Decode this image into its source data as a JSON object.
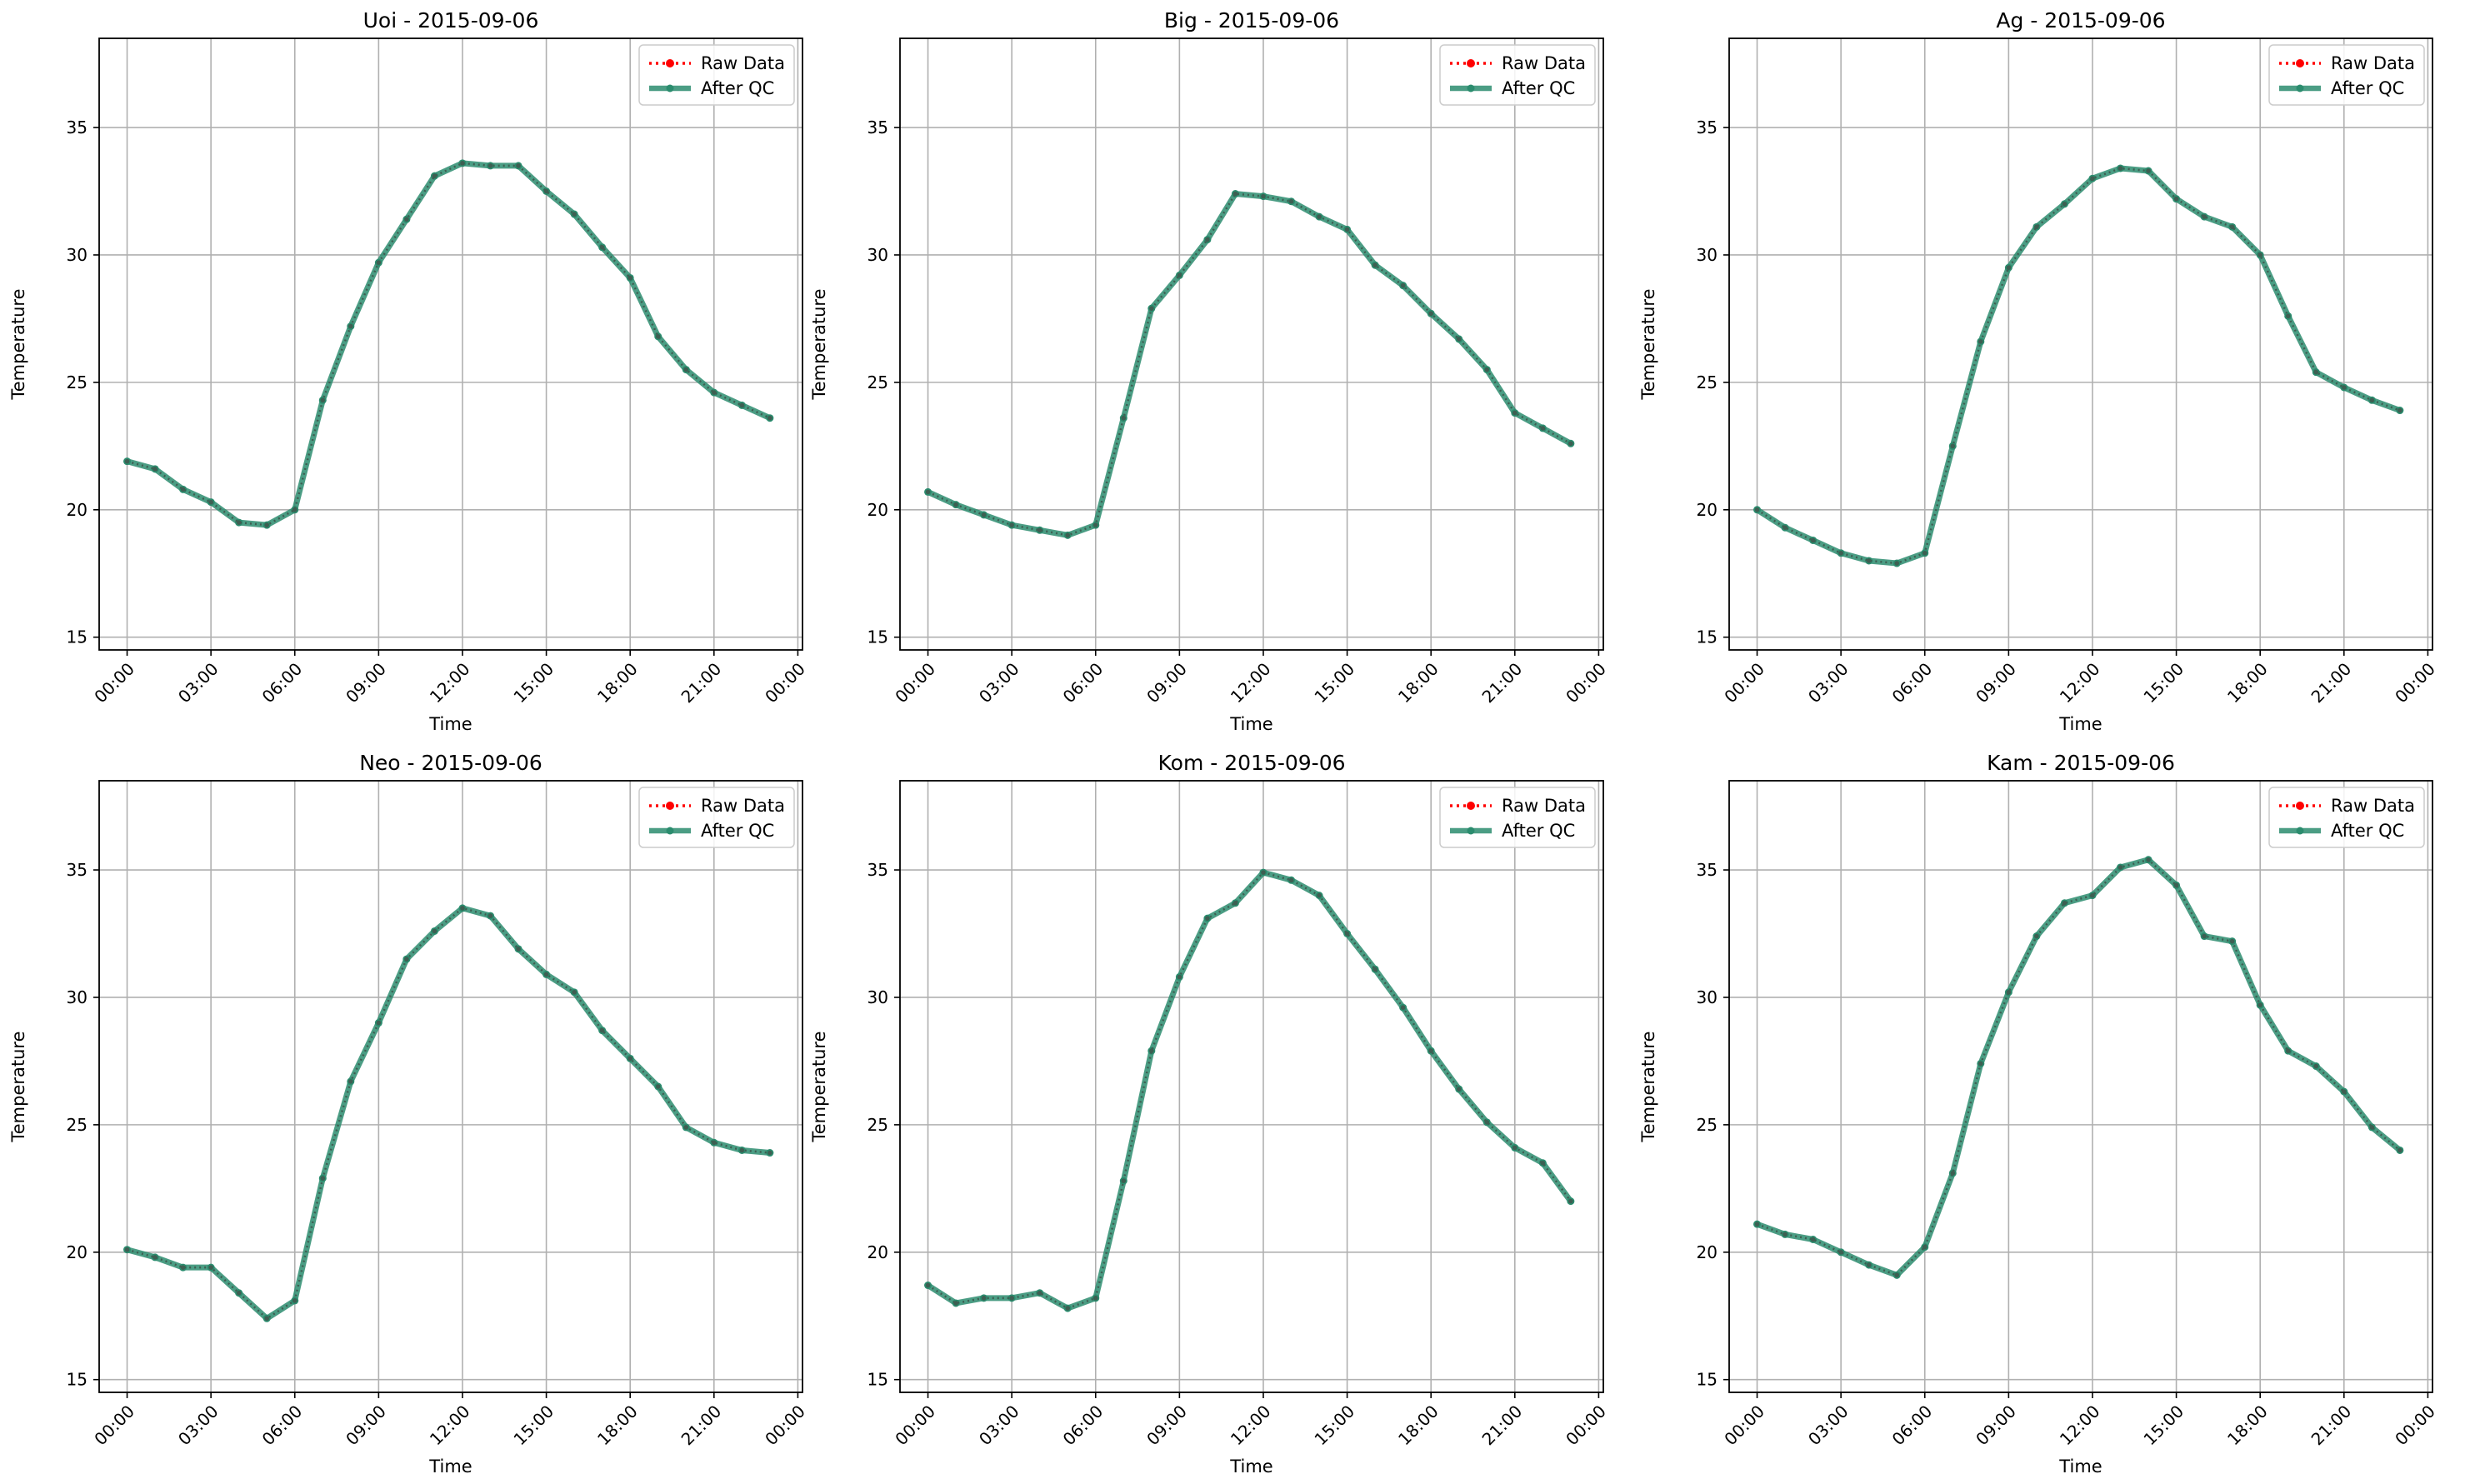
{
  "chart_data": [
    {
      "type": "line",
      "title": "Uoi - 2015-09-06",
      "xlabel": "Time",
      "ylabel": "Temperature",
      "x_tick_labels": [
        "00:00",
        "03:00",
        "06:00",
        "09:00",
        "12:00",
        "15:00",
        "18:00",
        "21:00",
        "00:00"
      ],
      "y_ticks": [
        15,
        20,
        25,
        30,
        35
      ],
      "xlim": [
        "2015-09-05 23:00",
        "2015-09-07 00:10"
      ],
      "ylim": [
        14.5,
        38.5
      ],
      "grid": true,
      "legend_position": "top-right",
      "x": [
        "00:00",
        "01:00",
        "02:00",
        "03:00",
        "04:00",
        "05:00",
        "06:00",
        "07:00",
        "08:00",
        "09:00",
        "10:00",
        "11:00",
        "12:00",
        "13:00",
        "14:00",
        "15:00",
        "16:00",
        "17:00",
        "18:00",
        "19:00",
        "20:00",
        "21:00",
        "22:00",
        "23:00"
      ],
      "series": [
        {
          "name": "Raw Data",
          "color": "#ff0000",
          "style": "dotted-markers",
          "values": [
            21.9,
            21.6,
            20.8,
            20.3,
            19.5,
            19.4,
            20.0,
            24.3,
            27.2,
            29.7,
            31.4,
            33.1,
            33.6,
            33.5,
            33.5,
            32.5,
            31.6,
            30.3,
            29.1,
            26.8,
            25.5,
            24.6,
            24.1,
            23.6
          ]
        },
        {
          "name": "After QC",
          "color": "#2b8c6e",
          "style": "solid-markers",
          "values": [
            21.9,
            21.6,
            20.8,
            20.3,
            19.5,
            19.4,
            20.0,
            24.3,
            27.2,
            29.7,
            31.4,
            33.1,
            33.6,
            33.5,
            33.5,
            32.5,
            31.6,
            30.3,
            29.1,
            26.8,
            25.5,
            24.6,
            24.1,
            23.6
          ]
        }
      ]
    },
    {
      "type": "line",
      "title": "Big - 2015-09-06",
      "xlabel": "Time",
      "ylabel": "Temperature",
      "x_tick_labels": [
        "00:00",
        "03:00",
        "06:00",
        "09:00",
        "12:00",
        "15:00",
        "18:00",
        "21:00",
        "00:00"
      ],
      "y_ticks": [
        15,
        20,
        25,
        30,
        35
      ],
      "xlim": [
        "2015-09-05 23:00",
        "2015-09-07 00:10"
      ],
      "ylim": [
        14.5,
        38.5
      ],
      "grid": true,
      "legend_position": "top-right",
      "x": [
        "00:00",
        "01:00",
        "02:00",
        "03:00",
        "04:00",
        "05:00",
        "06:00",
        "07:00",
        "08:00",
        "09:00",
        "10:00",
        "11:00",
        "12:00",
        "13:00",
        "14:00",
        "15:00",
        "16:00",
        "17:00",
        "18:00",
        "19:00",
        "20:00",
        "21:00",
        "22:00",
        "23:00"
      ],
      "series": [
        {
          "name": "Raw Data",
          "color": "#ff0000",
          "style": "dotted-markers",
          "values": [
            20.7,
            20.2,
            19.8,
            19.4,
            19.2,
            19.0,
            19.4,
            23.6,
            27.9,
            29.2,
            30.6,
            32.4,
            32.3,
            32.1,
            31.5,
            31.0,
            29.6,
            28.8,
            27.7,
            26.7,
            25.5,
            23.8,
            23.2,
            22.6
          ]
        },
        {
          "name": "After QC",
          "color": "#2b8c6e",
          "style": "solid-markers",
          "values": [
            20.7,
            20.2,
            19.8,
            19.4,
            19.2,
            19.0,
            19.4,
            23.6,
            27.9,
            29.2,
            30.6,
            32.4,
            32.3,
            32.1,
            31.5,
            31.0,
            29.6,
            28.8,
            27.7,
            26.7,
            25.5,
            23.8,
            23.2,
            22.6
          ]
        }
      ]
    },
    {
      "type": "line",
      "title": "Ag - 2015-09-06",
      "xlabel": "Time",
      "ylabel": "Temperature",
      "x_tick_labels": [
        "00:00",
        "03:00",
        "06:00",
        "09:00",
        "12:00",
        "15:00",
        "18:00",
        "21:00",
        "00:00"
      ],
      "y_ticks": [
        15,
        20,
        25,
        30,
        35
      ],
      "xlim": [
        "2015-09-05 23:00",
        "2015-09-07 00:10"
      ],
      "ylim": [
        14.5,
        38.5
      ],
      "grid": true,
      "legend_position": "top-right",
      "x": [
        "00:00",
        "01:00",
        "02:00",
        "03:00",
        "04:00",
        "05:00",
        "06:00",
        "07:00",
        "08:00",
        "09:00",
        "10:00",
        "11:00",
        "12:00",
        "13:00",
        "14:00",
        "15:00",
        "16:00",
        "17:00",
        "18:00",
        "19:00",
        "20:00",
        "21:00",
        "22:00",
        "23:00"
      ],
      "series": [
        {
          "name": "Raw Data",
          "color": "#ff0000",
          "style": "dotted-markers",
          "values": [
            20.0,
            19.3,
            18.8,
            18.3,
            18.0,
            17.9,
            18.3,
            22.5,
            26.6,
            29.5,
            31.1,
            32.0,
            33.0,
            33.4,
            33.3,
            32.2,
            31.5,
            31.1,
            30.0,
            27.6,
            25.4,
            24.8,
            24.3,
            23.9
          ]
        },
        {
          "name": "After QC",
          "color": "#2b8c6e",
          "style": "solid-markers",
          "values": [
            20.0,
            19.3,
            18.8,
            18.3,
            18.0,
            17.9,
            18.3,
            22.5,
            26.6,
            29.5,
            31.1,
            32.0,
            33.0,
            33.4,
            33.3,
            32.2,
            31.5,
            31.1,
            30.0,
            27.6,
            25.4,
            24.8,
            24.3,
            23.9
          ]
        }
      ]
    },
    {
      "type": "line",
      "title": "Neo - 2015-09-06",
      "xlabel": "Time",
      "ylabel": "Temperature",
      "x_tick_labels": [
        "00:00",
        "03:00",
        "06:00",
        "09:00",
        "12:00",
        "15:00",
        "18:00",
        "21:00",
        "00:00"
      ],
      "y_ticks": [
        15,
        20,
        25,
        30,
        35
      ],
      "xlim": [
        "2015-09-05 23:00",
        "2015-09-07 00:10"
      ],
      "ylim": [
        14.5,
        38.5
      ],
      "grid": true,
      "legend_position": "top-right",
      "x": [
        "00:00",
        "01:00",
        "02:00",
        "03:00",
        "04:00",
        "05:00",
        "06:00",
        "07:00",
        "08:00",
        "09:00",
        "10:00",
        "11:00",
        "12:00",
        "13:00",
        "14:00",
        "15:00",
        "16:00",
        "17:00",
        "18:00",
        "19:00",
        "20:00",
        "21:00",
        "22:00",
        "23:00"
      ],
      "series": [
        {
          "name": "Raw Data",
          "color": "#ff0000",
          "style": "dotted-markers",
          "values": [
            20.1,
            19.8,
            19.4,
            19.4,
            18.4,
            17.4,
            18.1,
            22.9,
            26.7,
            29.0,
            31.5,
            32.6,
            33.5,
            33.2,
            31.9,
            30.9,
            30.2,
            28.7,
            27.6,
            26.5,
            24.9,
            24.3,
            24.0,
            23.9
          ]
        },
        {
          "name": "After QC",
          "color": "#2b8c6e",
          "style": "solid-markers",
          "values": [
            20.1,
            19.8,
            19.4,
            19.4,
            18.4,
            17.4,
            18.1,
            22.9,
            26.7,
            29.0,
            31.5,
            32.6,
            33.5,
            33.2,
            31.9,
            30.9,
            30.2,
            28.7,
            27.6,
            26.5,
            24.9,
            24.3,
            24.0,
            23.9
          ]
        }
      ]
    },
    {
      "type": "line",
      "title": "Kom - 2015-09-06",
      "xlabel": "Time",
      "ylabel": "Temperature",
      "x_tick_labels": [
        "00:00",
        "03:00",
        "06:00",
        "09:00",
        "12:00",
        "15:00",
        "18:00",
        "21:00",
        "00:00"
      ],
      "y_ticks": [
        15,
        20,
        25,
        30,
        35
      ],
      "xlim": [
        "2015-09-05 23:00",
        "2015-09-07 00:10"
      ],
      "ylim": [
        14.5,
        38.5
      ],
      "grid": true,
      "legend_position": "top-right",
      "x": [
        "00:00",
        "01:00",
        "02:00",
        "03:00",
        "04:00",
        "05:00",
        "06:00",
        "07:00",
        "08:00",
        "09:00",
        "10:00",
        "11:00",
        "12:00",
        "13:00",
        "14:00",
        "15:00",
        "16:00",
        "17:00",
        "18:00",
        "19:00",
        "20:00",
        "21:00",
        "22:00",
        "23:00"
      ],
      "series": [
        {
          "name": "Raw Data",
          "color": "#ff0000",
          "style": "dotted-markers",
          "values": [
            18.7,
            18.0,
            18.2,
            18.2,
            18.4,
            17.8,
            18.2,
            22.8,
            27.9,
            30.8,
            33.1,
            33.7,
            34.9,
            34.6,
            34.0,
            32.5,
            31.1,
            29.6,
            27.9,
            26.4,
            25.1,
            24.1,
            23.5,
            22.0
          ]
        },
        {
          "name": "After QC",
          "color": "#2b8c6e",
          "style": "solid-markers",
          "values": [
            18.7,
            18.0,
            18.2,
            18.2,
            18.4,
            17.8,
            18.2,
            22.8,
            27.9,
            30.8,
            33.1,
            33.7,
            34.9,
            34.6,
            34.0,
            32.5,
            31.1,
            29.6,
            27.9,
            26.4,
            25.1,
            24.1,
            23.5,
            22.0
          ]
        }
      ]
    },
    {
      "type": "line",
      "title": "Kam - 2015-09-06",
      "xlabel": "Time",
      "ylabel": "Temperature",
      "x_tick_labels": [
        "00:00",
        "03:00",
        "06:00",
        "09:00",
        "12:00",
        "15:00",
        "18:00",
        "21:00",
        "00:00"
      ],
      "y_ticks": [
        15,
        20,
        25,
        30,
        35
      ],
      "xlim": [
        "2015-09-05 23:00",
        "2015-09-07 00:10"
      ],
      "ylim": [
        14.5,
        38.5
      ],
      "grid": true,
      "legend_position": "top-right",
      "x": [
        "00:00",
        "01:00",
        "02:00",
        "03:00",
        "04:00",
        "05:00",
        "06:00",
        "07:00",
        "08:00",
        "09:00",
        "10:00",
        "11:00",
        "12:00",
        "13:00",
        "14:00",
        "15:00",
        "16:00",
        "17:00",
        "18:00",
        "19:00",
        "20:00",
        "21:00",
        "22:00",
        "23:00"
      ],
      "series": [
        {
          "name": "Raw Data",
          "color": "#ff0000",
          "style": "dotted-markers",
          "values": [
            21.1,
            20.7,
            20.5,
            20.0,
            19.5,
            19.1,
            20.2,
            23.1,
            27.4,
            30.2,
            32.4,
            33.7,
            34.0,
            35.1,
            35.4,
            34.4,
            32.4,
            32.2,
            29.7,
            27.9,
            27.3,
            26.3,
            24.9,
            24.0
          ]
        },
        {
          "name": "After QC",
          "color": "#2b8c6e",
          "style": "solid-markers",
          "values": [
            21.1,
            20.7,
            20.5,
            20.0,
            19.5,
            19.1,
            20.2,
            23.1,
            27.4,
            30.2,
            32.4,
            33.7,
            34.0,
            35.1,
            35.4,
            34.4,
            32.4,
            32.2,
            29.7,
            27.9,
            27.3,
            26.3,
            24.9,
            24.0
          ]
        }
      ]
    }
  ]
}
